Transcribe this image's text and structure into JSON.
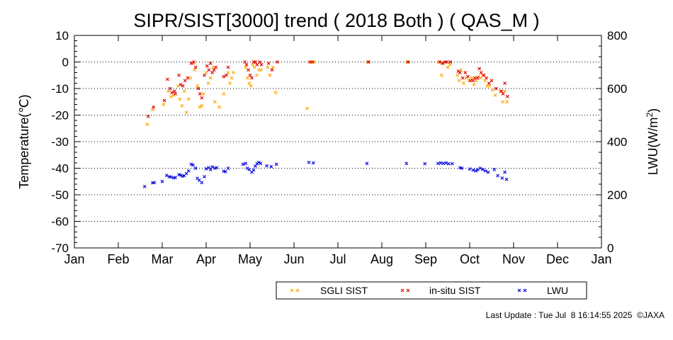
{
  "chart_data": {
    "type": "scatter",
    "title": "SIPR/SIST[3000] trend ( 2018 Both ) ( QAS_M )",
    "ylabel_left": "Temperature(℃)",
    "ylabel_right": "LWU(W/m²)",
    "ylabel_right_base": "LWU(W/m",
    "ylabel_right_sup": "2",
    "ylabel_right_close": ")",
    "ylim_left": [
      -70,
      10
    ],
    "ylim_right": [
      0,
      800
    ],
    "yticks_left": [
      "10",
      "0",
      "-10",
      "-20",
      "-30",
      "-40",
      "-50",
      "-60",
      "-70"
    ],
    "yticks_right": [
      "800",
      "600",
      "400",
      "200",
      "0"
    ],
    "xticks": [
      "Jan",
      "Feb",
      "Mar",
      "Apr",
      "May",
      "Jun",
      "Jul",
      "Aug",
      "Sep",
      "Oct",
      "Nov",
      "Dec",
      "Jan"
    ],
    "xlim_months": [
      0,
      12
    ],
    "grid": "horizontal dotted",
    "legend_position": "bottom-right",
    "series": [
      {
        "name": "SGLI SIST",
        "color": "#ffa500",
        "axis": "left",
        "points": [
          [
            1.66,
            -23.5
          ],
          [
            1.78,
            -18
          ],
          [
            2.03,
            -16
          ],
          [
            2.14,
            -11
          ],
          [
            2.2,
            -13
          ],
          [
            2.26,
            -12.5
          ],
          [
            2.36,
            -9
          ],
          [
            2.4,
            -14
          ],
          [
            2.45,
            -16.5
          ],
          [
            2.5,
            -11
          ],
          [
            2.55,
            -19
          ],
          [
            2.6,
            -14
          ],
          [
            2.64,
            -6
          ],
          [
            2.7,
            -0.5
          ],
          [
            2.74,
            -3
          ],
          [
            2.8,
            -9
          ],
          [
            2.85,
            -17
          ],
          [
            2.9,
            -16.5
          ],
          [
            2.94,
            -12
          ],
          [
            3.0,
            -4
          ],
          [
            3.05,
            -8
          ],
          [
            3.1,
            -6
          ],
          [
            3.16,
            -2
          ],
          [
            3.2,
            -15
          ],
          [
            3.3,
            -17
          ],
          [
            3.4,
            -12
          ],
          [
            3.5,
            -4
          ],
          [
            3.54,
            -8
          ],
          [
            3.58,
            -6
          ],
          [
            3.62,
            -4
          ],
          [
            3.9,
            -2
          ],
          [
            3.94,
            -6
          ],
          [
            3.98,
            -8
          ],
          [
            4.02,
            -9
          ],
          [
            4.06,
            -1
          ],
          [
            4.1,
            -2
          ],
          [
            4.15,
            -5
          ],
          [
            4.2,
            -3
          ],
          [
            4.25,
            -3
          ],
          [
            4.4,
            -2
          ],
          [
            4.45,
            -5
          ],
          [
            4.52,
            -2
          ],
          [
            4.58,
            -11.5
          ],
          [
            5.3,
            -17.5
          ],
          [
            5.38,
            0
          ],
          [
            5.45,
            0
          ],
          [
            6.68,
            0
          ],
          [
            7.58,
            0
          ],
          [
            8.3,
            0
          ],
          [
            8.36,
            -5
          ],
          [
            8.4,
            -0.5
          ],
          [
            8.5,
            -2
          ],
          [
            8.55,
            -1
          ],
          [
            8.72,
            -5
          ],
          [
            8.76,
            -7
          ],
          [
            8.8,
            -3
          ],
          [
            8.86,
            -8
          ],
          [
            8.92,
            -6
          ],
          [
            8.98,
            -7
          ],
          [
            9.05,
            -6
          ],
          [
            9.1,
            -8.5
          ],
          [
            9.15,
            -7
          ],
          [
            9.2,
            -5.5
          ],
          [
            9.25,
            -6
          ],
          [
            9.3,
            -5
          ],
          [
            9.35,
            -7
          ],
          [
            9.4,
            -9
          ],
          [
            9.45,
            -9
          ],
          [
            9.52,
            -10.5
          ],
          [
            9.58,
            -12.5
          ],
          [
            9.7,
            -11
          ],
          [
            9.75,
            -15
          ],
          [
            9.8,
            -11
          ],
          [
            9.85,
            -15
          ]
        ]
      },
      {
        "name": "in-situ SIST",
        "color": "#e00000",
        "axis": "left",
        "points": [
          [
            1.68,
            -20.5
          ],
          [
            1.8,
            -17
          ],
          [
            2.05,
            -14.5
          ],
          [
            2.12,
            -6.5
          ],
          [
            2.18,
            -10
          ],
          [
            2.22,
            -11.5
          ],
          [
            2.28,
            -11
          ],
          [
            2.3,
            -12
          ],
          [
            2.38,
            -5
          ],
          [
            2.42,
            -8.5
          ],
          [
            2.47,
            -9
          ],
          [
            2.52,
            -7
          ],
          [
            2.58,
            -6
          ],
          [
            2.66,
            -0.5
          ],
          [
            2.72,
            0
          ],
          [
            2.76,
            -2
          ],
          [
            2.82,
            -10
          ],
          [
            2.86,
            -12
          ],
          [
            2.9,
            -13.5
          ],
          [
            2.96,
            -5
          ],
          [
            3.02,
            -1.5
          ],
          [
            3.06,
            -3
          ],
          [
            3.1,
            -0.5
          ],
          [
            3.14,
            -4
          ],
          [
            3.18,
            -3
          ],
          [
            3.22,
            -2
          ],
          [
            3.4,
            -5.5
          ],
          [
            3.46,
            -5
          ],
          [
            3.5,
            -2
          ],
          [
            3.88,
            0
          ],
          [
            3.92,
            -1
          ],
          [
            3.96,
            -3
          ],
          [
            4.0,
            -5
          ],
          [
            4.04,
            -6
          ],
          [
            4.08,
            0
          ],
          [
            4.12,
            0
          ],
          [
            4.16,
            -1
          ],
          [
            4.22,
            0
          ],
          [
            4.26,
            -1
          ],
          [
            4.42,
            -0.5
          ],
          [
            4.5,
            -3
          ],
          [
            4.62,
            0
          ],
          [
            5.36,
            0
          ],
          [
            5.42,
            0
          ],
          [
            6.7,
            0
          ],
          [
            7.6,
            0
          ],
          [
            8.32,
            0
          ],
          [
            8.38,
            -0.5
          ],
          [
            8.44,
            0
          ],
          [
            8.48,
            0
          ],
          [
            8.56,
            0
          ],
          [
            8.74,
            -3.5
          ],
          [
            8.78,
            -4
          ],
          [
            8.84,
            -6
          ],
          [
            8.9,
            -4
          ],
          [
            8.96,
            -5.5
          ],
          [
            9.02,
            -7
          ],
          [
            9.08,
            -7
          ],
          [
            9.12,
            -6
          ],
          [
            9.18,
            -6
          ],
          [
            9.22,
            -2.5
          ],
          [
            9.26,
            -4
          ],
          [
            9.32,
            -5
          ],
          [
            9.38,
            -6
          ],
          [
            9.44,
            -8
          ],
          [
            9.5,
            -7
          ],
          [
            9.6,
            -10
          ],
          [
            9.72,
            -11
          ],
          [
            9.76,
            -12
          ],
          [
            9.8,
            -8
          ],
          [
            9.86,
            -13
          ]
        ]
      },
      {
        "name": "LWU",
        "color": "#0000e0",
        "axis": "right",
        "points": [
          [
            1.6,
            231
          ],
          [
            1.78,
            245
          ],
          [
            1.82,
            246
          ],
          [
            2.0,
            250
          ],
          [
            2.1,
            273
          ],
          [
            2.16,
            268
          ],
          [
            2.2,
            267
          ],
          [
            2.26,
            264
          ],
          [
            2.3,
            265
          ],
          [
            2.38,
            276
          ],
          [
            2.42,
            274
          ],
          [
            2.46,
            270
          ],
          [
            2.5,
            272
          ],
          [
            2.55,
            280
          ],
          [
            2.6,
            290
          ],
          [
            2.66,
            315
          ],
          [
            2.7,
            312
          ],
          [
            2.76,
            300
          ],
          [
            2.8,
            262
          ],
          [
            2.84,
            255
          ],
          [
            2.9,
            246
          ],
          [
            2.96,
            268
          ],
          [
            3.0,
            298
          ],
          [
            3.06,
            302
          ],
          [
            3.1,
            295
          ],
          [
            3.14,
            305
          ],
          [
            3.2,
            300
          ],
          [
            3.24,
            302
          ],
          [
            3.4,
            289
          ],
          [
            3.44,
            287
          ],
          [
            3.5,
            300
          ],
          [
            3.84,
            315
          ],
          [
            3.9,
            318
          ],
          [
            3.94,
            300
          ],
          [
            3.98,
            295
          ],
          [
            4.04,
            285
          ],
          [
            4.08,
            293
          ],
          [
            4.12,
            308
          ],
          [
            4.16,
            317
          ],
          [
            4.2,
            322
          ],
          [
            4.24,
            318
          ],
          [
            4.38,
            309
          ],
          [
            4.48,
            306
          ],
          [
            4.6,
            315
          ],
          [
            5.34,
            322
          ],
          [
            5.44,
            320
          ],
          [
            6.66,
            318
          ],
          [
            7.56,
            318
          ],
          [
            7.98,
            317
          ],
          [
            8.28,
            318
          ],
          [
            8.34,
            320
          ],
          [
            8.4,
            318
          ],
          [
            8.46,
            320
          ],
          [
            8.52,
            317
          ],
          [
            8.6,
            317
          ],
          [
            8.78,
            302
          ],
          [
            8.82,
            300
          ],
          [
            9.0,
            297
          ],
          [
            9.08,
            293
          ],
          [
            9.14,
            290
          ],
          [
            9.18,
            294
          ],
          [
            9.24,
            300
          ],
          [
            9.3,
            295
          ],
          [
            9.36,
            290
          ],
          [
            9.42,
            285
          ],
          [
            9.56,
            295
          ],
          [
            9.64,
            272
          ],
          [
            9.74,
            263
          ],
          [
            9.8,
            285
          ],
          [
            9.84,
            258
          ]
        ]
      }
    ]
  },
  "legend": {
    "items": [
      {
        "label": "SGLI SIST",
        "color": "#ffa500"
      },
      {
        "label": "in-situ SIST",
        "color": "#e00000"
      },
      {
        "label": "LWU",
        "color": "#0000e0"
      }
    ]
  },
  "footer": {
    "text": "Last Update : Tue Jul  8 16:14:55 2025  ©JAXA"
  }
}
